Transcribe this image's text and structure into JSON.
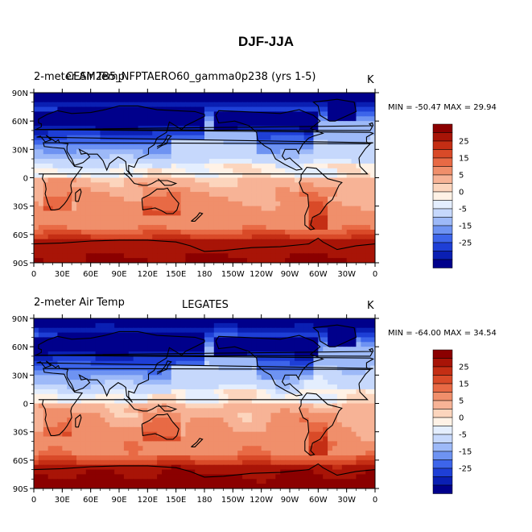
{
  "figure": {
    "title": "DJF-JJA",
    "colors": {
      "levels": [
        "#00008B",
        "#0A1FB3",
        "#1E3FD6",
        "#3D65EA",
        "#6E93F2",
        "#9DB9F8",
        "#C6D8FC",
        "#E4EEFE",
        "#FFF2E6",
        "#FCD5BD",
        "#F7B396",
        "#F08F6B",
        "#E86A45",
        "#D94A28",
        "#C42E14",
        "#A81407",
        "#8B0000"
      ],
      "coast": "#000000"
    }
  },
  "colorbar_labels": [
    "25",
    "15",
    "5",
    "0",
    "-5",
    "-15",
    "-25"
  ],
  "chart_data": [
    {
      "type": "heatmap",
      "id": "top",
      "title_left": "2-meter Air Temp",
      "title_center": "CESM2B5_NFPTAERO60_gamma0p238 (yrs 1-5)",
      "units": "K",
      "min_max": "MIN = -50.47 MAX =  29.94",
      "variable": "2-meter air temperature difference (DJF minus JJA)",
      "x_ticks": [
        "0",
        "30E",
        "60E",
        "90E",
        "120E",
        "150E",
        "180",
        "150W",
        "120W",
        "90W",
        "60W",
        "30W",
        "0"
      ],
      "y_ticks": [
        "90N",
        "60N",
        "30N",
        "0",
        "30S",
        "60S",
        "90S"
      ],
      "xlim": [
        0,
        360
      ],
      "ylim": [
        -90,
        90
      ],
      "contour_levels": [
        -35,
        -30,
        -25,
        -20,
        -15,
        -10,
        -5,
        -2,
        0,
        2,
        5,
        10,
        15,
        20,
        25,
        30
      ],
      "min": -50.47,
      "max": 29.94
    },
    {
      "type": "heatmap",
      "id": "bottom",
      "title_left": "2-meter Air Temp",
      "title_center": "LEGATES",
      "units": "K",
      "min_max": "MIN = -64.00 MAX =  34.54",
      "variable": "2-meter air temperature difference (DJF minus JJA)",
      "x_ticks": [
        "0",
        "30E",
        "60E",
        "90E",
        "120E",
        "150E",
        "180",
        "150W",
        "120W",
        "90W",
        "60W",
        "30W",
        "0"
      ],
      "y_ticks": [
        "90N",
        "60N",
        "30N",
        "0",
        "30S",
        "60S",
        "90S"
      ],
      "xlim": [
        0,
        360
      ],
      "ylim": [
        -90,
        90
      ],
      "contour_levels": [
        -35,
        -30,
        -25,
        -20,
        -15,
        -10,
        -5,
        -2,
        0,
        2,
        5,
        10,
        15,
        20,
        25,
        30
      ],
      "min": -64.0,
      "max": 34.54
    }
  ]
}
